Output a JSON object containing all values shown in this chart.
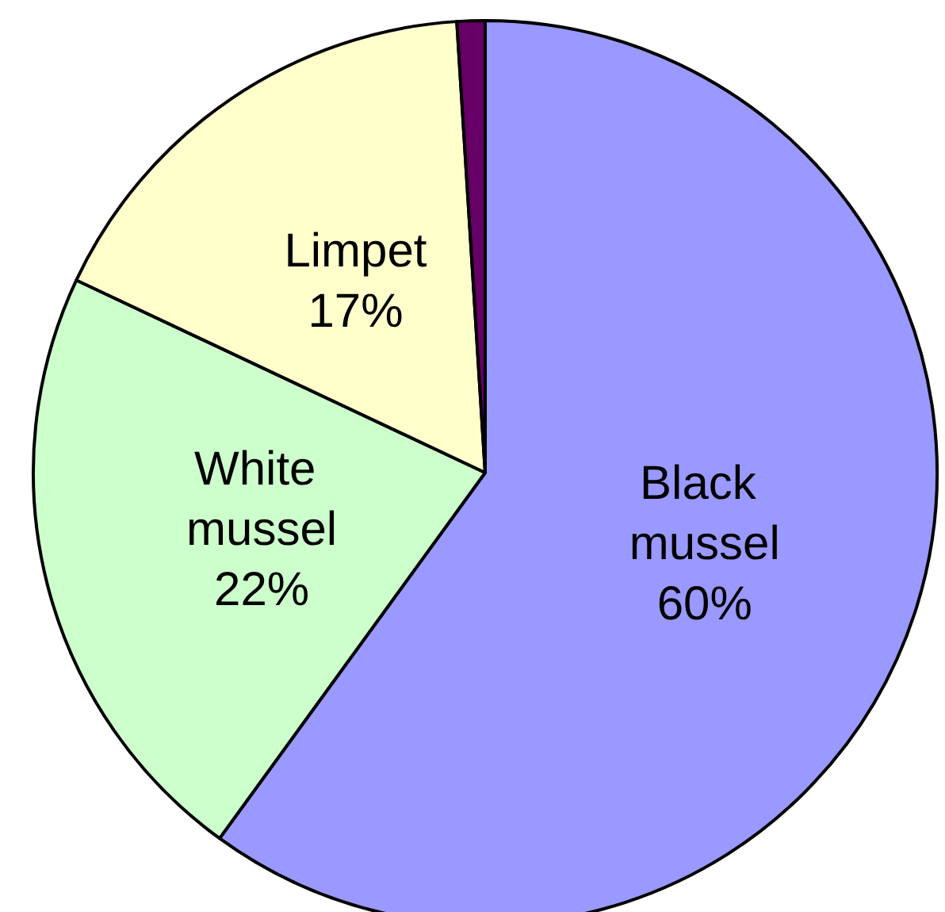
{
  "chart_data": {
    "type": "pie",
    "categories": [
      "Black mussel",
      "White mussel",
      "Limpet",
      null
    ],
    "values": [
      60,
      22,
      17,
      1
    ],
    "colors": [
      "#9999ff",
      "#ccffcc",
      "#ffffcc",
      "#660066"
    ],
    "value_labels": [
      "60%",
      "22%",
      "17%",
      null
    ]
  }
}
